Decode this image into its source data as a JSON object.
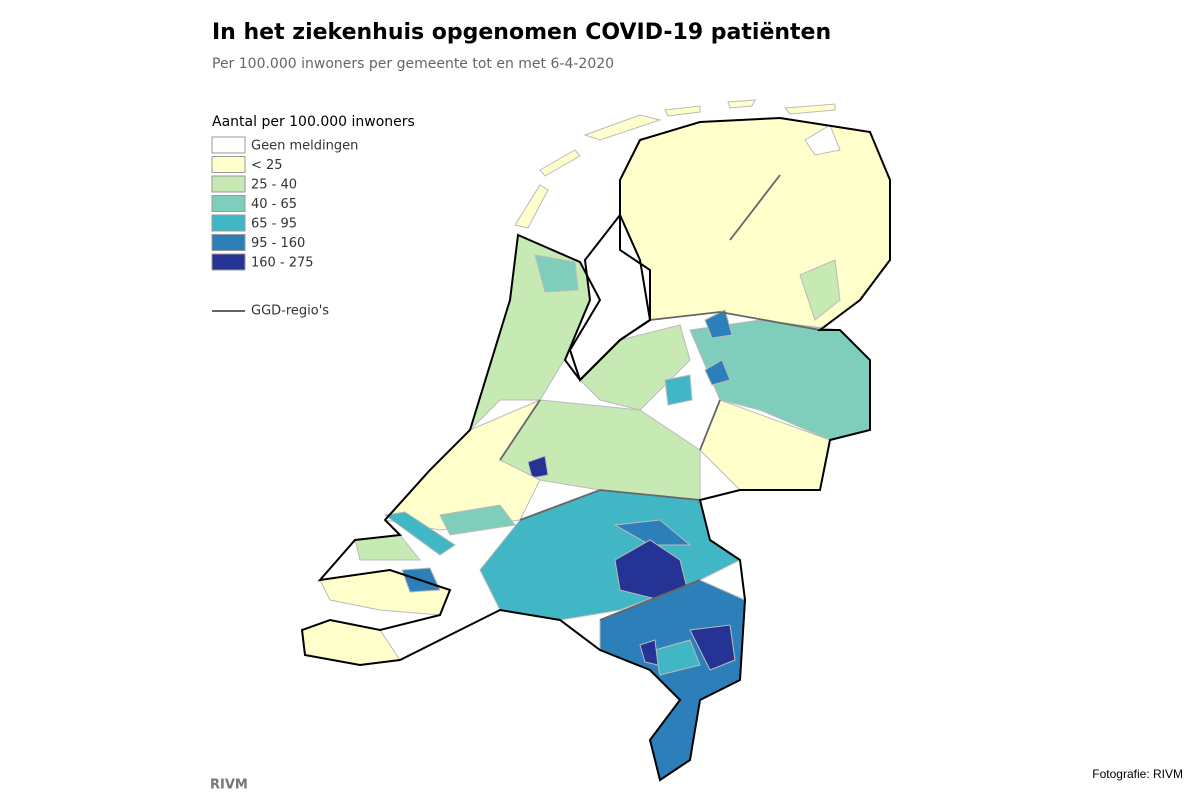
{
  "header": {
    "title": "In het ziekenhuis opgenomen COVID-19 patiënten",
    "subtitle": "Per 100.000 inwoners per gemeente tot en met 6-4-2020"
  },
  "legend": {
    "title": "Aantal per 100.000 inwoners",
    "items": [
      {
        "label": "Geen meldingen",
        "color": "#ffffff"
      },
      {
        "label": "< 25",
        "color": "#ffffcc"
      },
      {
        "label": "25 - 40",
        "color": "#c7e9b4"
      },
      {
        "label": "40 - 65",
        "color": "#7fcdbb"
      },
      {
        "label": "65 - 95",
        "color": "#41b6c4"
      },
      {
        "label": "95 - 160",
        "color": "#2c7fb8"
      },
      {
        "label": "160 - 275",
        "color": "#253494"
      }
    ],
    "line_label": "GGD-regio's"
  },
  "footer": {
    "source": "RIVM",
    "credit": "Fotografie: RIVM"
  }
}
